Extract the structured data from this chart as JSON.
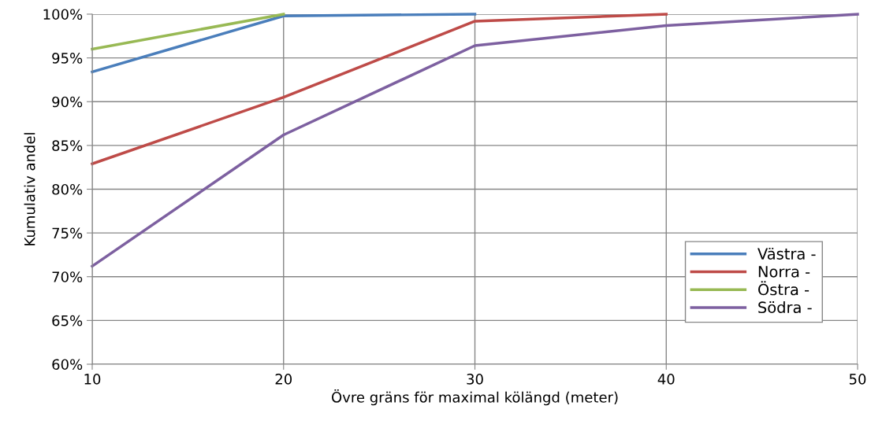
{
  "chart_data": {
    "type": "line",
    "xlabel": "Övre gräns för maximal kölängd (meter)",
    "ylabel": "Kumulativ andel",
    "series": [
      {
        "name": "Västra -",
        "color": "#4a7ebb",
        "x": [
          10,
          20,
          30
        ],
        "values": [
          93.4,
          99.8,
          100
        ]
      },
      {
        "name": "Norra -",
        "color": "#be4b48",
        "x": [
          10,
          20,
          30,
          40
        ],
        "values": [
          82.9,
          90.5,
          99.2,
          100
        ]
      },
      {
        "name": "Östra -",
        "color": "#98b954",
        "x": [
          10,
          20
        ],
        "values": [
          96.0,
          100
        ]
      },
      {
        "name": "Södra -",
        "color": "#7d60a0",
        "x": [
          10,
          20,
          30,
          40,
          50
        ],
        "values": [
          71.2,
          86.2,
          96.4,
          98.7,
          100
        ]
      }
    ],
    "xlim": [
      10,
      50
    ],
    "xticks": [
      10,
      20,
      30,
      40,
      50
    ],
    "ylim": [
      60,
      100
    ],
    "yticks": [
      {
        "value": 60,
        "label": "60%"
      },
      {
        "value": 65,
        "label": "65%"
      },
      {
        "value": 70,
        "label": "70%"
      },
      {
        "value": 75,
        "label": "75%"
      },
      {
        "value": 80,
        "label": "80%"
      },
      {
        "value": 85,
        "label": "85%"
      },
      {
        "value": 90,
        "label": "90%"
      },
      {
        "value": 95,
        "label": "95%"
      },
      {
        "value": 100,
        "label": "100%"
      }
    ],
    "grid": true,
    "legend": "bottom right",
    "marker": "none",
    "line_style": "solid"
  }
}
